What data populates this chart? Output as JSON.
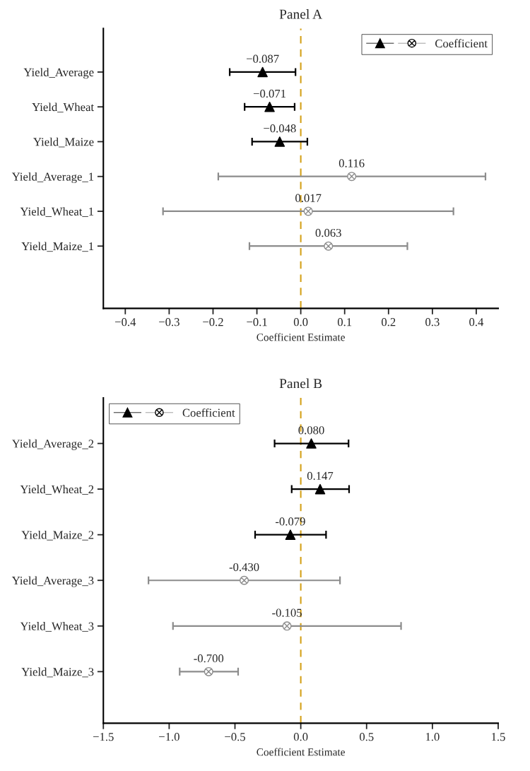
{
  "chart_data": [
    {
      "type": "scatter",
      "title": "Panel A",
      "xlabel": "Coefficient Estimate",
      "orientation": "horizontal",
      "categories": [
        "Yield_Average",
        "Yield_Wheat",
        "Yield_Maize",
        "Yield_Average_1",
        "Yield_Wheat_1",
        "Yield_Maize_1"
      ],
      "xlim": [
        -0.45,
        0.45
      ],
      "xticks": [
        {
          "value": -0.4,
          "label": "−0.4"
        },
        {
          "value": -0.3,
          "label": "−0.3"
        },
        {
          "value": -0.2,
          "label": "−0.2"
        },
        {
          "value": -0.1,
          "label": "−0.1"
        },
        {
          "value": 0,
          "label": "0.0"
        },
        0.1,
        0.2,
        0.3,
        0.4
      ],
      "series": [
        {
          "name": "Coefficient",
          "color": "#000000",
          "marker": "triangle",
          "values": [
            -0.087,
            -0.071,
            -0.048,
            null,
            null,
            null
          ],
          "errors": [
            [
              -0.162,
              -0.012
            ],
            [
              -0.128,
              -0.014
            ],
            [
              -0.111,
              0.015
            ],
            null,
            null,
            null
          ],
          "value_labels": [
            "−0.087",
            "−0.071",
            "−0.048",
            null,
            null,
            null
          ]
        },
        {
          "color": "#8c8c8c",
          "marker": "cross",
          "values": [
            null,
            null,
            null,
            0.116,
            0.017,
            0.063
          ],
          "errors": [
            null,
            null,
            null,
            [
              -0.188,
              0.421
            ],
            [
              -0.314,
              0.348
            ],
            [
              -0.117,
              0.243
            ]
          ],
          "value_labels": [
            null,
            null,
            null,
            "0.116",
            "0.017",
            "0.063"
          ]
        }
      ],
      "ref_lines": [
        {
          "axis": "x",
          "value": 0,
          "color": "#d4a017",
          "line_style": "dashed"
        }
      ],
      "grid": false,
      "legend": "top right"
    },
    {
      "type": "scatter",
      "title": "Panel B",
      "xlabel": "Coefficient Estimate",
      "orientation": "horizontal",
      "categories": [
        "Yield_Average_2",
        "Yield_Wheat_2",
        "Yield_Maize_2",
        "Yield_Average_3",
        "Yield_Wheat_3",
        "Yield_Maize_3"
      ],
      "xlim": [
        -1.5,
        1.5
      ],
      "xticks": [
        {
          "value": -1.5,
          "label": "−1.5"
        },
        {
          "value": -1.0,
          "label": "−1.0"
        },
        {
          "value": -0.5,
          "label": "−0.5"
        },
        {
          "value": 0,
          "label": "0.0"
        },
        0.5,
        {
          "value": 1,
          "label": "1.0"
        },
        1.5
      ],
      "series": [
        {
          "name": "Coefficient",
          "color": "#000000",
          "marker": "triangle",
          "values": [
            0.08,
            0.147,
            -0.079,
            null,
            null,
            null
          ],
          "errors": [
            [
              -0.199,
              0.363
            ],
            [
              -0.069,
              0.367
            ],
            [
              -0.347,
              0.192
            ],
            null,
            null,
            null
          ],
          "value_labels": [
            "0.080",
            "0.147",
            "-0.079",
            null,
            null,
            null
          ]
        },
        {
          "color": "#8c8c8c",
          "marker": "cross",
          "values": [
            null,
            null,
            null,
            -0.43,
            -0.105,
            -0.7
          ],
          "errors": [
            null,
            null,
            null,
            [
              -1.157,
              0.298
            ],
            [
              -0.971,
              0.762
            ],
            [
              -0.92,
              -0.476
            ]
          ],
          "value_labels": [
            null,
            null,
            null,
            "-0.430",
            "-0.105",
            "-0.700"
          ]
        }
      ],
      "ref_lines": [
        {
          "axis": "x",
          "value": 0,
          "color": "#d4a017",
          "line_style": "dashed"
        }
      ],
      "grid": false,
      "legend": "top left"
    }
  ]
}
